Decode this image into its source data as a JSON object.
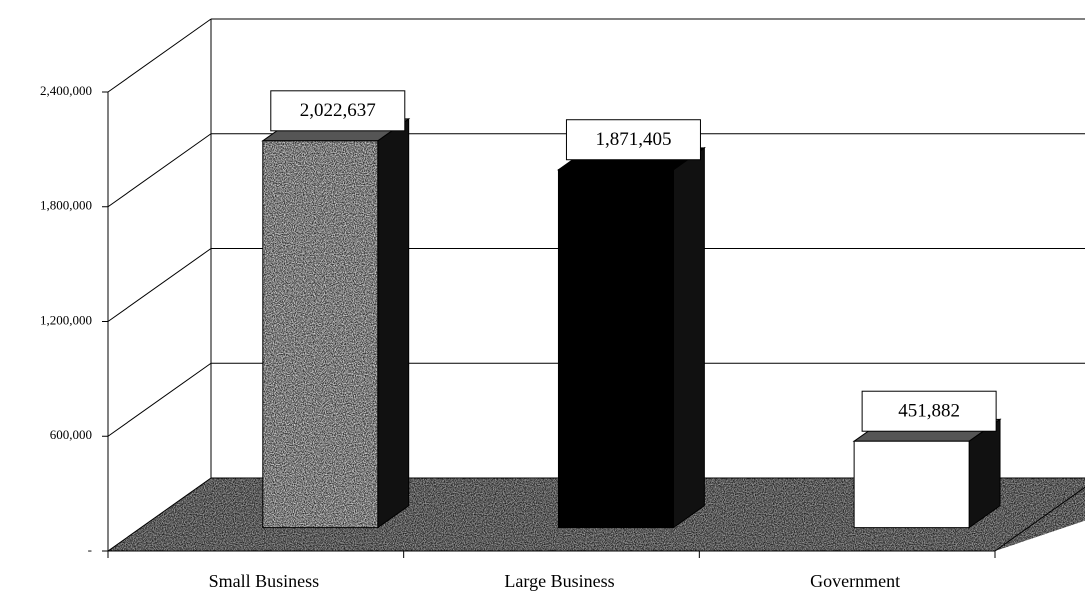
{
  "chart_data": {
    "type": "bar",
    "categories": [
      "Small Business",
      "Large Business",
      "Government"
    ],
    "values": [
      2022637,
      1871405,
      451882
    ],
    "value_labels": [
      "2,022,637",
      "1,871,405",
      "451,882"
    ],
    "colors": [
      "#cfcfcf",
      "#000000",
      "#ffffff"
    ],
    "ylim": [
      0,
      2400000
    ],
    "yticks": [
      {
        "value": 0,
        "label": "-"
      },
      {
        "value": 600000,
        "label": "600,000"
      },
      {
        "value": 1200000,
        "label": "1,200,000"
      },
      {
        "value": 1800000,
        "label": "1,800,000"
      },
      {
        "value": 2400000,
        "label": "2,400,000"
      }
    ],
    "grid": true
  }
}
